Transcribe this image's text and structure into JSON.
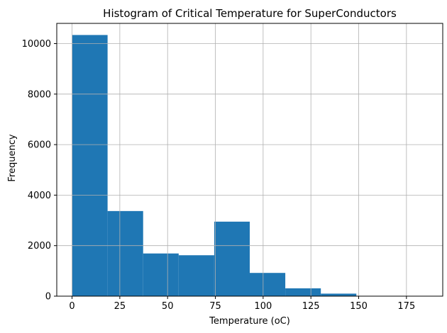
{
  "chart_data": {
    "type": "bar",
    "title": "Histogram of Critical Temperature for SuperConductors",
    "xlabel": "Temperature (oC)",
    "ylabel": "Frequency",
    "xlim": [
      -8,
      194
    ],
    "ylim": [
      0,
      10800
    ],
    "xticks": [
      0,
      25,
      50,
      75,
      100,
      125,
      150,
      175
    ],
    "yticks": [
      0,
      2000,
      4000,
      6000,
      8000,
      10000
    ],
    "bins": [
      {
        "x0": 0.0,
        "x1": 18.6,
        "count": 10340
      },
      {
        "x0": 18.6,
        "x1": 37.2,
        "count": 3370
      },
      {
        "x0": 37.2,
        "x1": 55.8,
        "count": 1690
      },
      {
        "x0": 55.8,
        "x1": 74.4,
        "count": 1620
      },
      {
        "x0": 74.4,
        "x1": 93.0,
        "count": 2950
      },
      {
        "x0": 93.0,
        "x1": 111.6,
        "count": 920
      },
      {
        "x0": 111.6,
        "x1": 130.2,
        "count": 310
      },
      {
        "x0": 130.2,
        "x1": 148.8,
        "count": 100
      },
      {
        "x0": 148.8,
        "x1": 167.4,
        "count": 5
      },
      {
        "x0": 167.4,
        "x1": 186.0,
        "count": 3
      }
    ],
    "grid": true,
    "bar_color": "#1f77b4",
    "grid_color": "#b0b0b0"
  }
}
